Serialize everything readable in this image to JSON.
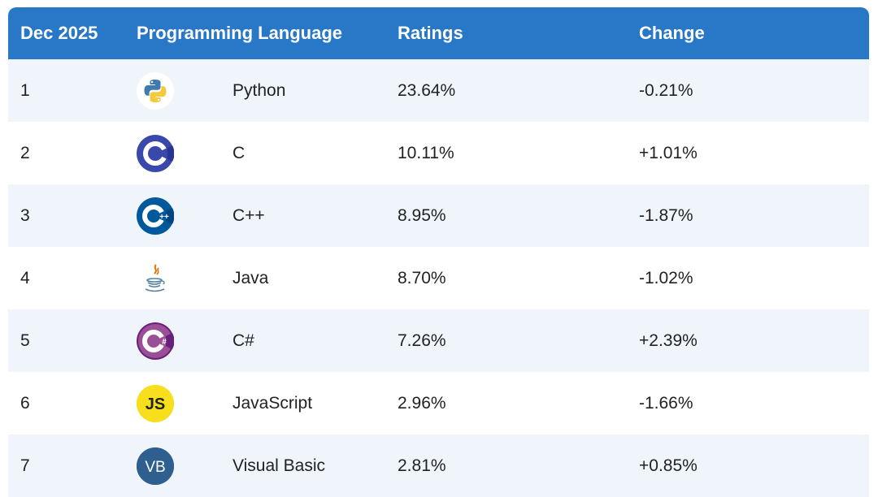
{
  "header": {
    "col_rank": "Dec 2025",
    "col_language": "Programming Language",
    "col_ratings": "Ratings",
    "col_change": "Change"
  },
  "rows": [
    {
      "rank": "1",
      "icon": "python-icon",
      "name": "Python",
      "rating": "23.64%",
      "change": "-0.21%"
    },
    {
      "rank": "2",
      "icon": "c-icon",
      "name": "C",
      "rating": "10.11%",
      "change": "+1.01%"
    },
    {
      "rank": "3",
      "icon": "cpp-icon",
      "name": "C++",
      "rating": "8.95%",
      "change": "-1.87%"
    },
    {
      "rank": "4",
      "icon": "java-icon",
      "name": "Java",
      "rating": "8.70%",
      "change": "-1.02%"
    },
    {
      "rank": "5",
      "icon": "csharp-icon",
      "name": "C#",
      "rating": "7.26%",
      "change": "+2.39%"
    },
    {
      "rank": "6",
      "icon": "javascript-icon",
      "name": "JavaScript",
      "rating": "2.96%",
      "change": "-1.66%"
    },
    {
      "rank": "7",
      "icon": "visual-basic-icon",
      "name": "Visual Basic",
      "rating": "2.81%",
      "change": "+0.85%"
    }
  ],
  "colors": {
    "header_bg": "#2878c7",
    "alt_row_bg": "#eff5fb",
    "c_blue": "#3949ab",
    "cpp_blue": "#00599c",
    "csharp_purple": "#68217a",
    "js_yellow": "#f7df1e",
    "vb_blue": "#2f5f8f"
  }
}
